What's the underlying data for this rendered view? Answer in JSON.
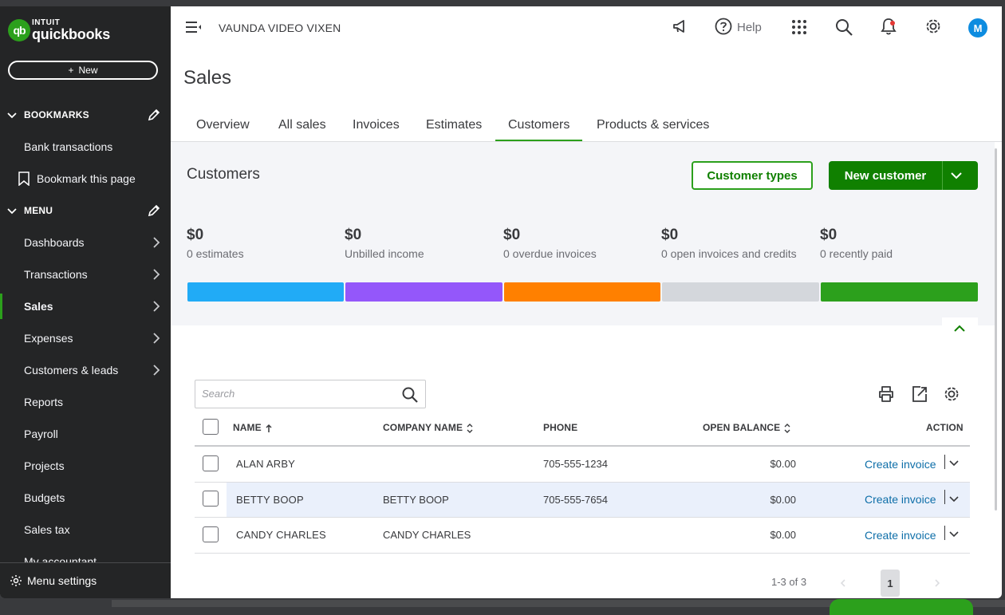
{
  "brand": {
    "logo_mark": "qb",
    "line1": "INTUIT",
    "line2": "quickbooks",
    "accent": "#2ca01c"
  },
  "sidebar": {
    "new_label": "New",
    "bookmarks_header": "BOOKMARKS",
    "bookmarks": [
      {
        "label": "Bank transactions"
      },
      {
        "label": "Bookmark this page"
      }
    ],
    "menu_header": "MENU",
    "items": [
      {
        "label": "Dashboards"
      },
      {
        "label": "Transactions"
      },
      {
        "label": "Sales"
      },
      {
        "label": "Expenses"
      },
      {
        "label": "Customers & leads"
      },
      {
        "label": "Reports"
      },
      {
        "label": "Payroll"
      },
      {
        "label": "Projects"
      },
      {
        "label": "Budgets"
      },
      {
        "label": "Sales tax"
      },
      {
        "label": "My accountant"
      }
    ],
    "menu_settings": "Menu settings"
  },
  "topbar": {
    "company": "VAUNDA VIDEO VIXEN",
    "help_label": "Help",
    "avatar_initial": "M"
  },
  "page": {
    "title": "Sales",
    "tabs": [
      {
        "label": "Overview"
      },
      {
        "label": "All sales"
      },
      {
        "label": "Invoices"
      },
      {
        "label": "Estimates"
      },
      {
        "label": "Customers"
      },
      {
        "label": "Products & services"
      }
    ]
  },
  "summary": {
    "title": "Customers",
    "customer_types_label": "Customer types",
    "new_customer_label": "New customer",
    "stats": [
      {
        "value": "$0",
        "label": "0 estimates",
        "color": "#21abf6"
      },
      {
        "value": "$0",
        "label": "Unbilled income",
        "color": "#9457fa"
      },
      {
        "value": "$0",
        "label": "0 overdue invoices",
        "color": "#ff8000"
      },
      {
        "value": "$0",
        "label": "0 open invoices and credits",
        "color": "#d4d7dc"
      },
      {
        "value": "$0",
        "label": "0 recently paid",
        "color": "#2ca01c"
      }
    ]
  },
  "table": {
    "search_placeholder": "Search",
    "headers": {
      "name": "NAME",
      "company": "COMPANY NAME",
      "phone": "PHONE",
      "balance": "OPEN BALANCE",
      "action": "ACTION"
    },
    "rows": [
      {
        "name": "ALAN ARBY",
        "company": "",
        "phone": "705-555-1234",
        "balance": "$0.00",
        "action": "Create invoice"
      },
      {
        "name": "BETTY BOOP",
        "company": "BETTY BOOP",
        "phone": "705-555-7654",
        "balance": "$0.00",
        "action": "Create invoice"
      },
      {
        "name": "CANDY CHARLES",
        "company": "CANDY CHARLES",
        "phone": "",
        "balance": "$0.00",
        "action": "Create invoice"
      }
    ],
    "pager": {
      "range": "1-3 of 3",
      "current_page": "1"
    }
  }
}
